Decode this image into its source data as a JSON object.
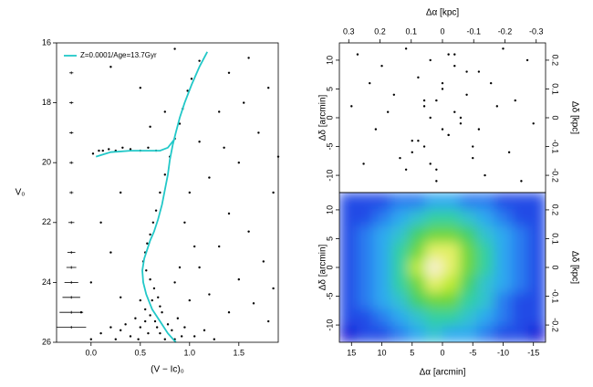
{
  "chart_data": [
    {
      "type": "scatter",
      "xlabel": "(V − Ic)₀",
      "ylabel": "V₀",
      "xlim": [
        -0.35,
        1.9
      ],
      "ylim": [
        26,
        16
      ],
      "xticks": [
        {
          "value": 0,
          "label": "0.0"
        },
        {
          "value": 0.5,
          "label": "0.5"
        },
        {
          "value": 1,
          "label": "1.0"
        },
        {
          "value": 1.5,
          "label": "1.5"
        }
      ],
      "yticks": [
        16,
        18,
        20,
        22,
        24,
        26
      ],
      "color": "#000000",
      "x": [
        0.02,
        0.08,
        0.12,
        0.18,
        0.25,
        0.32,
        0.4,
        0.5,
        0.58,
        0.66,
        1.1,
        1.02,
        0.98,
        0.93,
        0.9,
        0.85,
        0.8,
        0.75,
        0.7,
        0.66,
        0.63,
        0.6,
        0.57,
        0.55,
        0.53,
        0.56,
        0.6,
        0.64,
        0.68,
        0.7,
        0.5,
        0.55,
        0.6,
        0.65,
        0.72,
        0.78,
        0.82,
        0.45,
        0.5,
        0.58,
        0.4,
        0.35,
        0.3,
        0.25,
        0.2,
        0.1,
        0.0,
        0.88,
        0.95,
        1.05,
        1.15,
        1.25,
        0.62,
        0.7,
        0.75,
        0.55,
        0.48,
        0.85,
        0.92,
        0.67,
        1.4,
        1.6,
        1.8,
        1.3,
        1.7,
        1.5,
        1.2,
        1.85,
        1.4,
        1.6,
        1.3,
        1.75,
        1.1,
        1.5,
        1.85,
        1.2,
        1.65,
        1.4,
        1.8,
        1.0,
        0.2,
        0.5,
        0.75,
        0.3,
        0.1,
        0.2,
        0.0,
        0.3,
        -0.1,
        0.85,
        1.0,
        0.95,
        1.05,
        0.9,
        0.85,
        1.1,
        1.35,
        1.55,
        1.9,
        0.6
      ],
      "y": [
        19.7,
        19.6,
        19.6,
        19.55,
        19.6,
        19.5,
        19.55,
        19.6,
        19.5,
        19.6,
        16.6,
        17.2,
        17.6,
        18.2,
        18.7,
        19.2,
        19.8,
        20.4,
        21.0,
        21.6,
        22.0,
        22.4,
        22.7,
        23.0,
        23.3,
        23.6,
        23.9,
        24.2,
        24.5,
        24.8,
        24.6,
        24.9,
        25.1,
        25.3,
        25.0,
        25.4,
        25.6,
        25.2,
        25.5,
        25.7,
        25.8,
        25.4,
        25.6,
        25.9,
        25.5,
        25.7,
        25.9,
        25.2,
        25.5,
        25.8,
        25.6,
        25.9,
        24.6,
        25.7,
        25.9,
        25.3,
        25.9,
        25.9,
        25.8,
        25.5,
        17.0,
        16.5,
        17.5,
        18.3,
        19.0,
        20.0,
        20.5,
        21.0,
        21.7,
        22.3,
        22.8,
        23.3,
        23.5,
        23.9,
        24.2,
        24.4,
        24.7,
        25.0,
        25.3,
        24.6,
        16.8,
        17.5,
        18.3,
        21.0,
        22.0,
        23.0,
        24.0,
        24.5,
        25.0,
        16.2,
        21.0,
        22.0,
        22.8,
        23.5,
        24.0,
        19.3,
        19.5,
        18.0,
        19.8,
        18.8
      ],
      "isochrone": {
        "name": "Z=0.0001/Age=13.7Gyr",
        "color": "#22c8c8",
        "x": [
          1.18,
          1.1,
          1.02,
          0.95,
          0.9,
          0.86,
          0.83,
          0.8,
          0.78,
          0.75,
          0.72,
          0.68,
          0.64,
          0.6,
          0.57,
          0.54,
          0.52,
          0.53,
          0.56,
          0.62,
          0.7,
          0.78,
          0.86,
          null,
          0.85,
          0.78,
          0.7,
          0.6,
          0.4,
          0.2,
          0.05
        ],
        "y": [
          16.3,
          16.8,
          17.4,
          18.0,
          18.5,
          19.0,
          19.4,
          19.9,
          20.4,
          20.9,
          21.4,
          21.9,
          22.3,
          22.6,
          22.9,
          23.2,
          23.6,
          24.0,
          24.4,
          24.9,
          25.3,
          25.7,
          26.0,
          null,
          19.2,
          19.5,
          19.6,
          19.6,
          19.6,
          19.65,
          19.8
        ]
      },
      "errorbars": {
        "x": -0.2,
        "y": [
          17,
          18,
          19,
          20,
          21,
          22,
          23,
          23.5,
          24,
          24.5,
          25,
          25.5
        ],
        "xerr": [
          0.02,
          0.02,
          0.02,
          0.02,
          0.02,
          0.03,
          0.04,
          0.05,
          0.07,
          0.09,
          0.12,
          0.15
        ]
      }
    },
    {
      "type": "scatter",
      "x2label": "Δα [kpc]",
      "ylabel": "Δδ [arcmin]",
      "y2label": "Δδ [kpc]",
      "xlim": [
        17,
        -17
      ],
      "ylim": [
        -13,
        13
      ],
      "x2lim": [
        0.33,
        -0.33
      ],
      "y2lim": [
        -0.26,
        0.26
      ],
      "x2ticks": [
        0.3,
        0.2,
        0.1,
        0,
        -0.1,
        -0.2,
        -0.3
      ],
      "yticks": [
        -10,
        -5,
        0,
        5,
        10
      ],
      "y2ticks": [
        -0.2,
        -0.1,
        0,
        0.1,
        0.2
      ],
      "color": "#000000",
      "x": [
        14,
        10,
        6,
        2,
        -2,
        -6,
        -10,
        -14,
        12,
        8,
        4,
        0,
        -4,
        -8,
        -12,
        15,
        9,
        3,
        -3,
        -9,
        -15,
        11,
        5,
        -1,
        -5,
        -11,
        13,
        7,
        1,
        -7,
        -13,
        2,
        -2,
        0,
        3,
        -3,
        1,
        -1,
        4,
        -4,
        5,
        -5,
        0,
        2,
        -2,
        6,
        -6,
        1,
        -1,
        3
      ],
      "y": [
        11,
        9,
        12,
        10,
        11,
        8,
        12,
        10,
        6,
        4,
        7,
        5,
        8,
        6,
        3,
        2,
        1,
        3,
        0,
        2,
        -1,
        -2,
        -4,
        -3,
        -5,
        -6,
        -8,
        -7,
        -9,
        -10,
        -11,
        0,
        1,
        -2,
        2,
        -1,
        3,
        -3,
        -4,
        4,
        -6,
        -7,
        6,
        -8,
        9,
        -9,
        -2,
        -11,
        11,
        -5
      ]
    },
    {
      "type": "heatmap",
      "xlabel": "Δα [arcmin]",
      "ylabel": "Δδ [arcmin]",
      "y2label": "Δδ [kpc]",
      "xlim": [
        17,
        -17
      ],
      "ylim": [
        -13,
        13
      ],
      "y2lim": [
        -0.26,
        0.26
      ],
      "xticks": [
        15,
        10,
        5,
        0,
        -5,
        -10,
        -15
      ],
      "yticks": [
        -10,
        -5,
        0,
        5,
        10
      ],
      "y2ticks": [
        -0.2,
        -0.1,
        0,
        0.1,
        0.2
      ],
      "zlim": [
        0,
        10
      ],
      "colors": [
        "#1a1ad8",
        "#2a6cf0",
        "#30b8f0",
        "#30d0a0",
        "#50d040",
        "#d8f020",
        "#f8f0d0"
      ],
      "z": [
        [
          1,
          1,
          1,
          2,
          2,
          3,
          3,
          2,
          2,
          1,
          1,
          1
        ],
        [
          1,
          1,
          2,
          3,
          4,
          5,
          5,
          4,
          3,
          2,
          1,
          1
        ],
        [
          1,
          2,
          3,
          4,
          6,
          7,
          7,
          6,
          4,
          3,
          2,
          1
        ],
        [
          1,
          2,
          3,
          5,
          7,
          9,
          9,
          7,
          5,
          3,
          2,
          1
        ],
        [
          1,
          2,
          3,
          5,
          8,
          10,
          9,
          7,
          5,
          3,
          2,
          1
        ],
        [
          1,
          2,
          3,
          5,
          7,
          9,
          8,
          6,
          4,
          3,
          2,
          1
        ],
        [
          1,
          2,
          3,
          4,
          6,
          7,
          7,
          5,
          4,
          2,
          1,
          1
        ],
        [
          1,
          1,
          2,
          3,
          4,
          5,
          5,
          4,
          3,
          2,
          1,
          1
        ],
        [
          0,
          1,
          1,
          2,
          3,
          4,
          3,
          3,
          2,
          1,
          1,
          0
        ]
      ]
    }
  ]
}
